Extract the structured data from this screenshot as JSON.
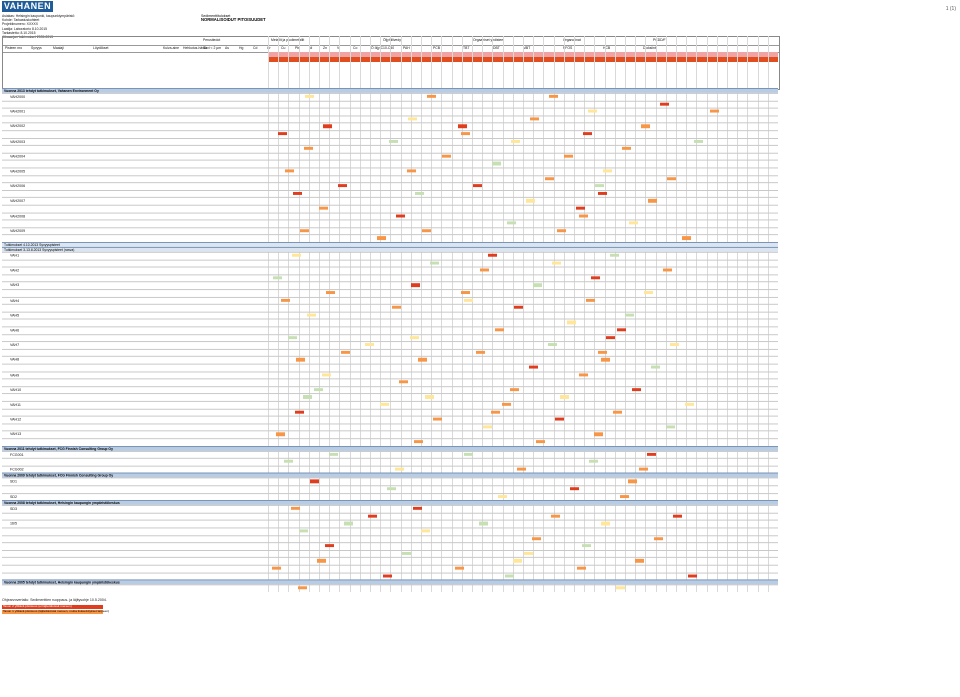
{
  "page": {
    "number": "1 (1)"
  },
  "header": {
    "logo_text": "VAHANEN",
    "meta_lines": [
      "Asiakas: Helsingin kaupunki, kaupunkiympäristö",
      "Kohde: Tarkastuskohteet",
      "Projektinumero: XXXXX",
      "Laatija: Laboratorio 8.10.2015",
      "Tarkastettu: 8.10.2015",
      "Aikasarjan tutkimukset 2005-2015"
    ],
    "title_small": "Sedimenttitulokset",
    "title_big": "NORMALISOIDUT PITOISUUDET"
  },
  "table_head": {
    "columns": [
      "Pisteen nro",
      "Syvyys",
      "Maalaji",
      "Löydökset",
      "Kuiva-aine",
      "Hehkutus-häviö",
      "Savi < 2 µm",
      "As",
      "Hg",
      "Cd",
      "Cr",
      "Cu",
      "Pb",
      "Ni",
      "Zn",
      "V",
      "Co",
      "Ö öljy C10-C40",
      "PAH",
      "PCB",
      "TBT",
      "DBT",
      "MBT",
      "PFOS",
      "HCB",
      "Dioksiinit"
    ],
    "groups": [
      "Perustiedot",
      "Metallit ja puolimetallit",
      "Öljyhiilivedyt",
      "Orgaaniset yhdisteet",
      "Organotinat",
      "PCDD/F"
    ]
  },
  "sections": [
    {
      "title": "Vuonna 2013 tehdyt tutkimukset, Vahanen Environment Oy",
      "kind": "main",
      "rows": 20
    },
    {
      "title": "Tutkimukset 4.10.2013 Syvyyspisteet",
      "kind": "sub",
      "rows": 0
    },
    {
      "title": "Tutkimukset 3-13.8.2013 Syvyyspisteet (rasva)",
      "kind": "sub",
      "rows": 26
    },
    {
      "title": "Vuonna 2011 tehdyt tutkimukset, FCG Finnish Consulting Group Oy",
      "kind": "main",
      "rows": 3
    },
    {
      "title": "Vuonna 2009 tehdyt tutkimukset, FCG Finnish Consulting Group Oy",
      "kind": "main",
      "rows": 3
    },
    {
      "title": "Vuonna 2008 tehdyt tutkimukset, Helsingin kaupungin ympäristökeskus",
      "kind": "main",
      "rows": 10
    },
    {
      "title": "Vuonna 2005 tehdyt tutkimukset, Helsingin kaupungin ympäristökeskus",
      "kind": "main",
      "rows": 1
    }
  ],
  "point_ids": [
    "VAH2000",
    "VAH2001",
    "VAH2002",
    "VAH2003",
    "VAH2004",
    "VAH2005",
    "VAH2006",
    "VAH2007",
    "VAH2008",
    "VAH2009",
    "VAH1",
    "VAH2",
    "VAH3",
    "VAH4",
    "VAH5",
    "VAH6",
    "VAH7",
    "VAH8",
    "VAH9",
    "VAH10",
    "VAH11",
    "VAH12",
    "VAH13",
    "FCG001",
    "FCG002",
    "SD1",
    "SD2",
    "SD3",
    "16/5"
  ],
  "footnotes": [
    "Ohjearvovertailu: Sedimenttien ruoppaus- ja läjitysohje 10.5.2004.",
    "Tason 2 ylittävä pitoisuus (ei läjitettävissä mereen)",
    "Tason 1 ylittävä pitoisuus (läjitettävissä mereen, mutta lisäselvitykset tarpeen)"
  ],
  "colors": {
    "heading_bg": "#b8cce4",
    "orange": "#f79646",
    "red": "#e03c1e",
    "yellow": "#ffe699",
    "logo": "#1f5c99"
  }
}
